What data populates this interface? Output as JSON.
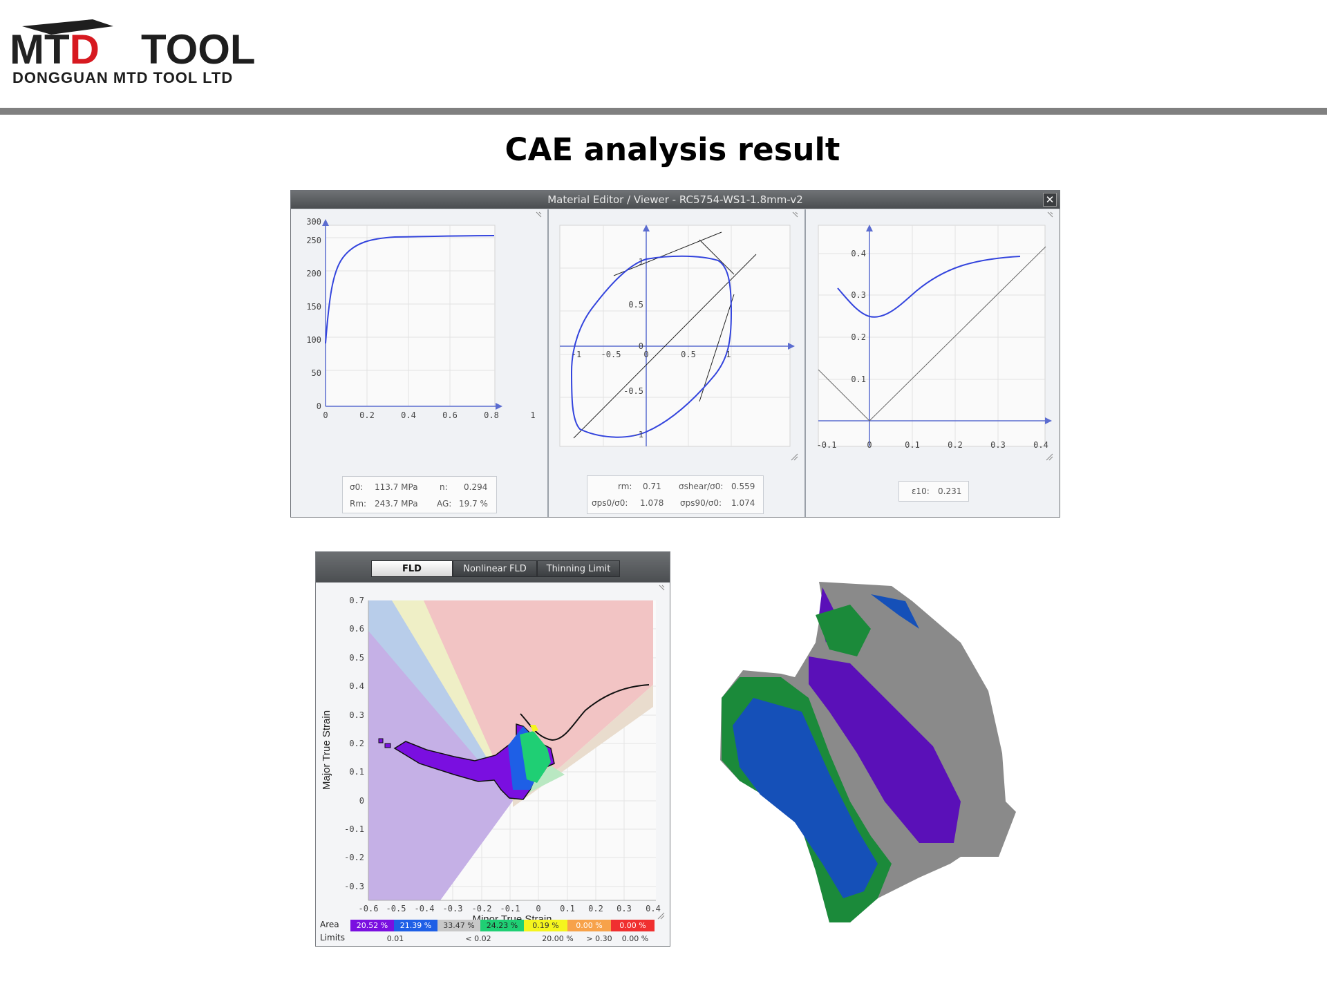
{
  "header": {
    "logo_text_mtd": "MTD",
    "logo_text_tool": "TOOL",
    "company_name": "DONGGUAN MTD TOOL LTD"
  },
  "page_title": "CAE analysis result",
  "colors": {
    "rule": "#808080",
    "curve": "#3344dd",
    "logo_red": "#d71920",
    "logo_dark": "#222222"
  },
  "material_editor": {
    "title": "Material Editor / Viewer - RC5754-WS1-1.8mm-v2",
    "close_icon": "close-icon",
    "stress_strain": {
      "y_ticks": [
        "0",
        "50",
        "100",
        "150",
        "200",
        "250",
        "300"
      ],
      "x_ticks": [
        "0",
        "0.2",
        "0.4",
        "0.6",
        "0.8",
        "1"
      ],
      "params": {
        "sigma0_label": "σ0:",
        "sigma0_value": "113.7 MPa",
        "n_label": "n:",
        "n_value": "0.294",
        "rm_label": "Rm:",
        "rm_value": "243.7 MPa",
        "ag_label": "AG:",
        "ag_value": "19.7 %"
      }
    },
    "yield_locus": {
      "x_ticks": [
        "-1",
        "-0.5",
        "0",
        "0.5",
        "1"
      ],
      "y_ticks": [
        "1",
        "0.5",
        "0",
        "-0.5",
        "-1"
      ],
      "params": {
        "rm_label": "rm:",
        "rm_value": "0.71",
        "shear_label": "σshear/σ0:",
        "shear_value": "0.559",
        "ps0_label": "σps0/σ0:",
        "ps0_value": "1.078",
        "ps90_label": "σps90/σ0:",
        "ps90_value": "1.074"
      }
    },
    "flc": {
      "x_ticks": [
        "-0.1",
        "0",
        "0.1",
        "0.2",
        "0.3",
        "0.4"
      ],
      "y_ticks": [
        "0.4",
        "0.3",
        "0.2",
        "0.1"
      ],
      "params": {
        "eps10_label": "ε10:",
        "eps10_value": "0.231"
      }
    }
  },
  "fld": {
    "tabs": [
      "FLD",
      "Nonlinear FLD",
      "Thinning Limit"
    ],
    "active_tab": "FLD",
    "y_axis_label": "Major True Strain",
    "x_axis_label": "Minor True Strain",
    "y_ticks": [
      "0.7",
      "0.6",
      "0.5",
      "0.4",
      "0.3",
      "0.2",
      "0.1",
      "0",
      "-0.1",
      "-0.2",
      "-0.3"
    ],
    "x_ticks": [
      "-0.6",
      "-0.5",
      "-0.4",
      "-0.3",
      "-0.2",
      "-0.1",
      "0",
      "0.1",
      "0.2",
      "0.3",
      "0.4"
    ],
    "area_label": "Area",
    "limits_label": "Limits",
    "legend": [
      {
        "value": "20.52 %",
        "color": "#7a0fe0",
        "text_color": "#ffffff"
      },
      {
        "value": "21.39 %",
        "color": "#1e5fe6",
        "text_color": "#ffffff"
      },
      {
        "value": "33.47 %",
        "color": "#c8c8c8",
        "text_color": "#333333"
      },
      {
        "value": "24.23 %",
        "color": "#1fcf74",
        "text_color": "#222222"
      },
      {
        "value": "0.19 %",
        "color": "#f5f51e",
        "text_color": "#333333"
      },
      {
        "value": "0.00 %",
        "color": "#f7a24a",
        "text_color": "#ffffff"
      },
      {
        "value": "0.00 %",
        "color": "#f03030",
        "text_color": "#ffffff"
      }
    ],
    "limits": [
      "0.01",
      "< 0.02",
      "20.00 %",
      "> 0.30",
      "0.00 %"
    ]
  }
}
